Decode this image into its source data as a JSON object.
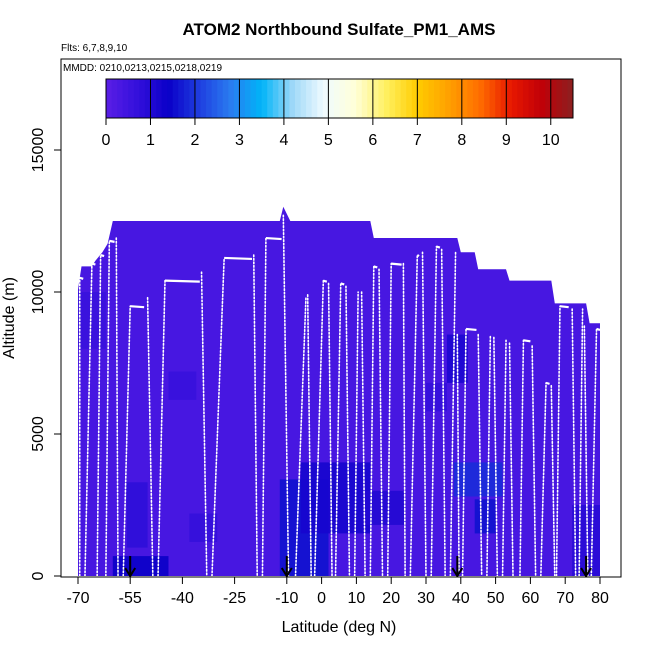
{
  "chart_data": {
    "type": "heatmap",
    "title": "ATOM2 Northbound Sulfate_PM1_AMS",
    "flights_label": "Flts: 6,7,8,9,10",
    "dates_label": "MMDD: 0210,0213,0215,0218,0219",
    "xlabel": "Latitude (deg N)",
    "ylabel": "Altitude (m)",
    "xlim": [
      -72,
      86
    ],
    "ylim": [
      0,
      17500
    ],
    "x_ticks": [
      -70,
      -55,
      -40,
      -25,
      -10,
      0,
      10,
      20,
      30,
      40,
      50,
      60,
      70,
      80
    ],
    "x_tick_labels": [
      "-70",
      "-55",
      "-40",
      "-25",
      "-10",
      "0",
      "10",
      "20",
      "30",
      "40",
      "50",
      "60",
      "70",
      "80"
    ],
    "y_ticks": [
      0,
      5000,
      10000,
      15000
    ],
    "y_tick_labels": [
      "0",
      "5000",
      "10000",
      "15000"
    ],
    "colorbar": {
      "min": 0,
      "max": 10.5,
      "ticks": [
        0,
        1,
        2,
        3,
        4,
        5,
        6,
        7,
        8,
        9,
        10
      ],
      "tick_labels": [
        "0",
        "1",
        "2",
        "3",
        "4",
        "5",
        "6",
        "7",
        "8",
        "9",
        "10"
      ],
      "colors": [
        "#5a1ee6",
        "#3410dc",
        "#0a00c8",
        "#1f3ee0",
        "#2a7cf0",
        "#00b4f8",
        "#9fd8f8",
        "#f0fbff",
        "#ffffd8",
        "#fff060",
        "#ffcc00",
        "#ffa000",
        "#ff6e00",
        "#e81800",
        "#c00008",
        "#8c2020"
      ]
    },
    "background_value": 0.35,
    "coverage_envelope": [
      [
        -70.0,
        10100
      ],
      [
        -69.0,
        10900
      ],
      [
        -66.0,
        10900
      ],
      [
        -65.0,
        11100
      ],
      [
        -63.0,
        11400
      ],
      [
        -61.5,
        11700
      ],
      [
        -60.0,
        12500
      ],
      [
        -12.0,
        12500
      ],
      [
        -11.0,
        13000
      ],
      [
        -9.0,
        12500
      ],
      [
        14.0,
        12500
      ],
      [
        15.0,
        11900
      ],
      [
        39.0,
        11900
      ],
      [
        40.0,
        11400
      ],
      [
        44.0,
        11400
      ],
      [
        45.0,
        10800
      ],
      [
        53.0,
        10800
      ],
      [
        54.0,
        10400
      ],
      [
        66.0,
        10400
      ],
      [
        67.0,
        9600
      ],
      [
        76.0,
        9600
      ],
      [
        77.0,
        8900
      ],
      [
        80.0,
        8900
      ],
      [
        80.0,
        0
      ],
      [
        -70.0,
        0
      ]
    ],
    "high_value_patches": [
      {
        "lat": [
          -60,
          -44
        ],
        "alt": [
          0,
          700
        ],
        "value": 1.4
      },
      {
        "lat": [
          -12,
          2
        ],
        "alt": [
          0,
          3400
        ],
        "value": 1.6
      },
      {
        "lat": [
          -6,
          14
        ],
        "alt": [
          1500,
          4000
        ],
        "value": 1.2
      },
      {
        "lat": [
          12,
          24
        ],
        "alt": [
          1800,
          3000
        ],
        "value": 1.0
      },
      {
        "lat": [
          38,
          52
        ],
        "alt": [
          2800,
          4000
        ],
        "value": 1.9
      },
      {
        "lat": [
          44,
          50
        ],
        "alt": [
          1500,
          2700
        ],
        "value": 1.6
      },
      {
        "lat": [
          36,
          42
        ],
        "alt": [
          6800,
          8500
        ],
        "value": 1.1
      },
      {
        "lat": [
          -56,
          -50
        ],
        "alt": [
          1000,
          3300
        ],
        "value": 0.8
      },
      {
        "lat": [
          -38,
          -30
        ],
        "alt": [
          1200,
          2200
        ],
        "value": 0.7
      },
      {
        "lat": [
          30,
          36
        ],
        "alt": [
          5800,
          6800
        ],
        "value": 0.7
      },
      {
        "lat": [
          -44,
          -36
        ],
        "alt": [
          6200,
          7200
        ],
        "value": 0.65
      },
      {
        "lat": [
          72,
          80
        ],
        "alt": [
          0,
          2500
        ],
        "value": 0.9
      },
      {
        "lat": [
          -70,
          -62
        ],
        "alt": [
          8000,
          10000
        ],
        "value": 0.6
      }
    ],
    "flight_profiles": [
      {
        "from": [
          -69.5,
          0
        ],
        "to": [
          -69.5,
          10500
        ],
        "level_to": -68.5
      },
      {
        "from": [
          -68.0,
          0
        ],
        "to": [
          -66.0,
          11000
        ],
        "level_to": -65.0
      },
      {
        "from": [
          -64.5,
          0
        ],
        "to": [
          -63.5,
          11300
        ],
        "level_to": -62.5
      },
      {
        "from": [
          -62.0,
          0
        ],
        "to": [
          -61.0,
          11800
        ],
        "level_to": -59.5
      },
      {
        "from": [
          -59.0,
          11900
        ],
        "to": [
          -58.5,
          0
        ],
        "level_to": null
      },
      {
        "from": [
          -57.0,
          0
        ],
        "to": [
          -55.0,
          9500
        ],
        "level_to": -51.0
      },
      {
        "from": [
          -50.0,
          9800
        ],
        "to": [
          -48.5,
          0
        ],
        "level_to": null
      },
      {
        "from": [
          -47.0,
          0
        ],
        "to": [
          -45.0,
          10400
        ],
        "level_to": -35.0
      },
      {
        "from": [
          -34.5,
          10700
        ],
        "to": [
          -33.0,
          0
        ],
        "level_to": null
      },
      {
        "from": [
          -31.5,
          0
        ],
        "to": [
          -28.0,
          11200
        ],
        "level_to": -20.0
      },
      {
        "from": [
          -19.5,
          11300
        ],
        "to": [
          -18.5,
          0
        ],
        "level_to": null
      },
      {
        "from": [
          -17.0,
          0
        ],
        "to": [
          -16.0,
          11900
        ],
        "level_to": -11.5
      },
      {
        "from": [
          -11.0,
          12700
        ],
        "to": [
          -9.5,
          0
        ],
        "level_to": null
      },
      {
        "from": [
          -7.5,
          0
        ],
        "to": [
          -4.5,
          9800
        ],
        "level_to": null
      },
      {
        "from": [
          -4.0,
          9900
        ],
        "to": [
          -3.0,
          0
        ],
        "level_to": null
      },
      {
        "from": [
          -2.0,
          0
        ],
        "to": [
          0.5,
          10400
        ],
        "level_to": 1.5
      },
      {
        "from": [
          2.0,
          10300
        ],
        "to": [
          3.0,
          0
        ],
        "level_to": null
      },
      {
        "from": [
          4.0,
          0
        ],
        "to": [
          5.5,
          10300
        ],
        "level_to": 6.5
      },
      {
        "from": [
          7.0,
          10200
        ],
        "to": [
          8.0,
          0
        ],
        "level_to": null
      },
      {
        "from": [
          9.5,
          0
        ],
        "to": [
          10.5,
          10000
        ],
        "level_to": null
      },
      {
        "from": [
          11.5,
          10000
        ],
        "to": [
          12.5,
          0
        ],
        "level_to": null
      },
      {
        "from": [
          14.0,
          0
        ],
        "to": [
          15.0,
          10900
        ],
        "level_to": 16.0
      },
      {
        "from": [
          16.5,
          10800
        ],
        "to": [
          17.5,
          0
        ],
        "level_to": null
      },
      {
        "from": [
          19.0,
          0
        ],
        "to": [
          20.0,
          11000
        ],
        "level_to": 23.0
      },
      {
        "from": [
          23.5,
          11000
        ],
        "to": [
          24.0,
          0
        ],
        "level_to": null
      },
      {
        "from": [
          25.5,
          0
        ],
        "to": [
          27.5,
          11300
        ],
        "level_to": 28.0
      },
      {
        "from": [
          29.0,
          11400
        ],
        "to": [
          30.0,
          0
        ],
        "level_to": null
      },
      {
        "from": [
          31.5,
          0
        ],
        "to": [
          33.0,
          11600
        ],
        "level_to": 34.0
      },
      {
        "from": [
          34.5,
          11500
        ],
        "to": [
          35.5,
          0
        ],
        "level_to": null
      },
      {
        "from": [
          37.0,
          0
        ],
        "to": [
          38.5,
          11400
        ],
        "level_to": null
      },
      {
        "from": [
          39.0,
          8500
        ],
        "to": [
          39.5,
          0
        ],
        "level_to": null
      },
      {
        "from": [
          40.5,
          0
        ],
        "to": [
          41.5,
          8700
        ],
        "level_to": 44.5
      },
      {
        "from": [
          45.0,
          8500
        ],
        "to": [
          46.0,
          0
        ],
        "level_to": null
      },
      {
        "from": [
          47.5,
          0
        ],
        "to": [
          48.5,
          8500
        ],
        "level_to": null
      },
      {
        "from": [
          49.5,
          8400
        ],
        "to": [
          50.5,
          0
        ],
        "level_to": null
      },
      {
        "from": [
          52.0,
          0
        ],
        "to": [
          53.0,
          8300
        ],
        "level_to": null
      },
      {
        "from": [
          54.0,
          8200
        ],
        "to": [
          55.0,
          0
        ],
        "level_to": null
      },
      {
        "from": [
          57.0,
          0
        ],
        "to": [
          58.0,
          8300
        ],
        "level_to": 60.0
      },
      {
        "from": [
          60.5,
          8100
        ],
        "to": [
          61.5,
          0
        ],
        "level_to": null
      },
      {
        "from": [
          63.0,
          0
        ],
        "to": [
          64.5,
          6800
        ],
        "level_to": 65.5
      },
      {
        "from": [
          66.0,
          6700
        ],
        "to": [
          67.0,
          0
        ],
        "level_to": null
      },
      {
        "from": [
          67.5,
          0
        ],
        "to": [
          68.5,
          9500
        ],
        "level_to": 71.0
      },
      {
        "from": [
          72.0,
          9400
        ],
        "to": [
          73.0,
          0
        ],
        "level_to": null
      },
      {
        "from": [
          74.0,
          0
        ],
        "to": [
          75.0,
          9400
        ],
        "level_to": null
      },
      {
        "from": [
          75.5,
          8800
        ],
        "to": [
          76.5,
          0
        ],
        "level_to": null
      },
      {
        "from": [
          77.5,
          0
        ],
        "to": [
          79.0,
          8700
        ],
        "level_to": 80.0
      }
    ],
    "arrow_markers": [
      -55,
      -10,
      39,
      76
    ]
  }
}
